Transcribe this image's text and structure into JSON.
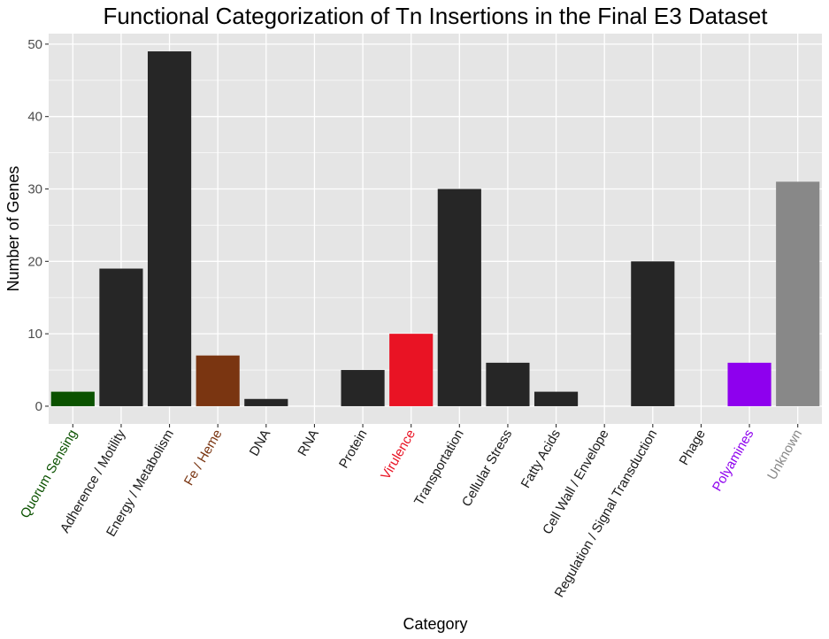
{
  "chart_data": {
    "type": "bar",
    "title": "Functional Categorization of Tn Insertions in the Final E3 Dataset",
    "xlabel": "Category",
    "ylabel": "Number of Genes",
    "ylim": [
      -2.45,
      51.45
    ],
    "yticks": [
      0,
      10,
      20,
      30,
      40,
      50
    ],
    "grid": true,
    "categories": [
      "Quorum Sensing",
      "Adherence / Motility",
      "Energy / Metabolism",
      "Fe / Heme",
      "DNA",
      "RNA",
      "Protein",
      "Virulence",
      "Transportation",
      "Cellular Stress",
      "Fatty Acids",
      "Cell Wall / Envelope",
      "Regulation / Signal Transduction",
      "Phage",
      "Polyamines",
      "Unknown"
    ],
    "values": [
      2,
      19,
      49,
      7,
      1,
      0,
      5,
      10,
      30,
      6,
      2,
      0,
      20,
      0,
      6,
      31
    ],
    "bar_colors": [
      "#0b5200",
      "#262626",
      "#262626",
      "#7a3511",
      "#262626",
      "#262626",
      "#262626",
      "#e91324",
      "#262626",
      "#262626",
      "#262626",
      "#262626",
      "#262626",
      "#262626",
      "#8e00ee",
      "#888888"
    ],
    "label_colors": [
      "#0b5200",
      "#1a1a1a",
      "#1a1a1a",
      "#7a3511",
      "#1a1a1a",
      "#1a1a1a",
      "#1a1a1a",
      "#e91324",
      "#1a1a1a",
      "#1a1a1a",
      "#1a1a1a",
      "#1a1a1a",
      "#1a1a1a",
      "#1a1a1a",
      "#8e00ee",
      "#888888"
    ],
    "panel_background": "#e5e5e5",
    "gridline_color": "#ffffff"
  }
}
